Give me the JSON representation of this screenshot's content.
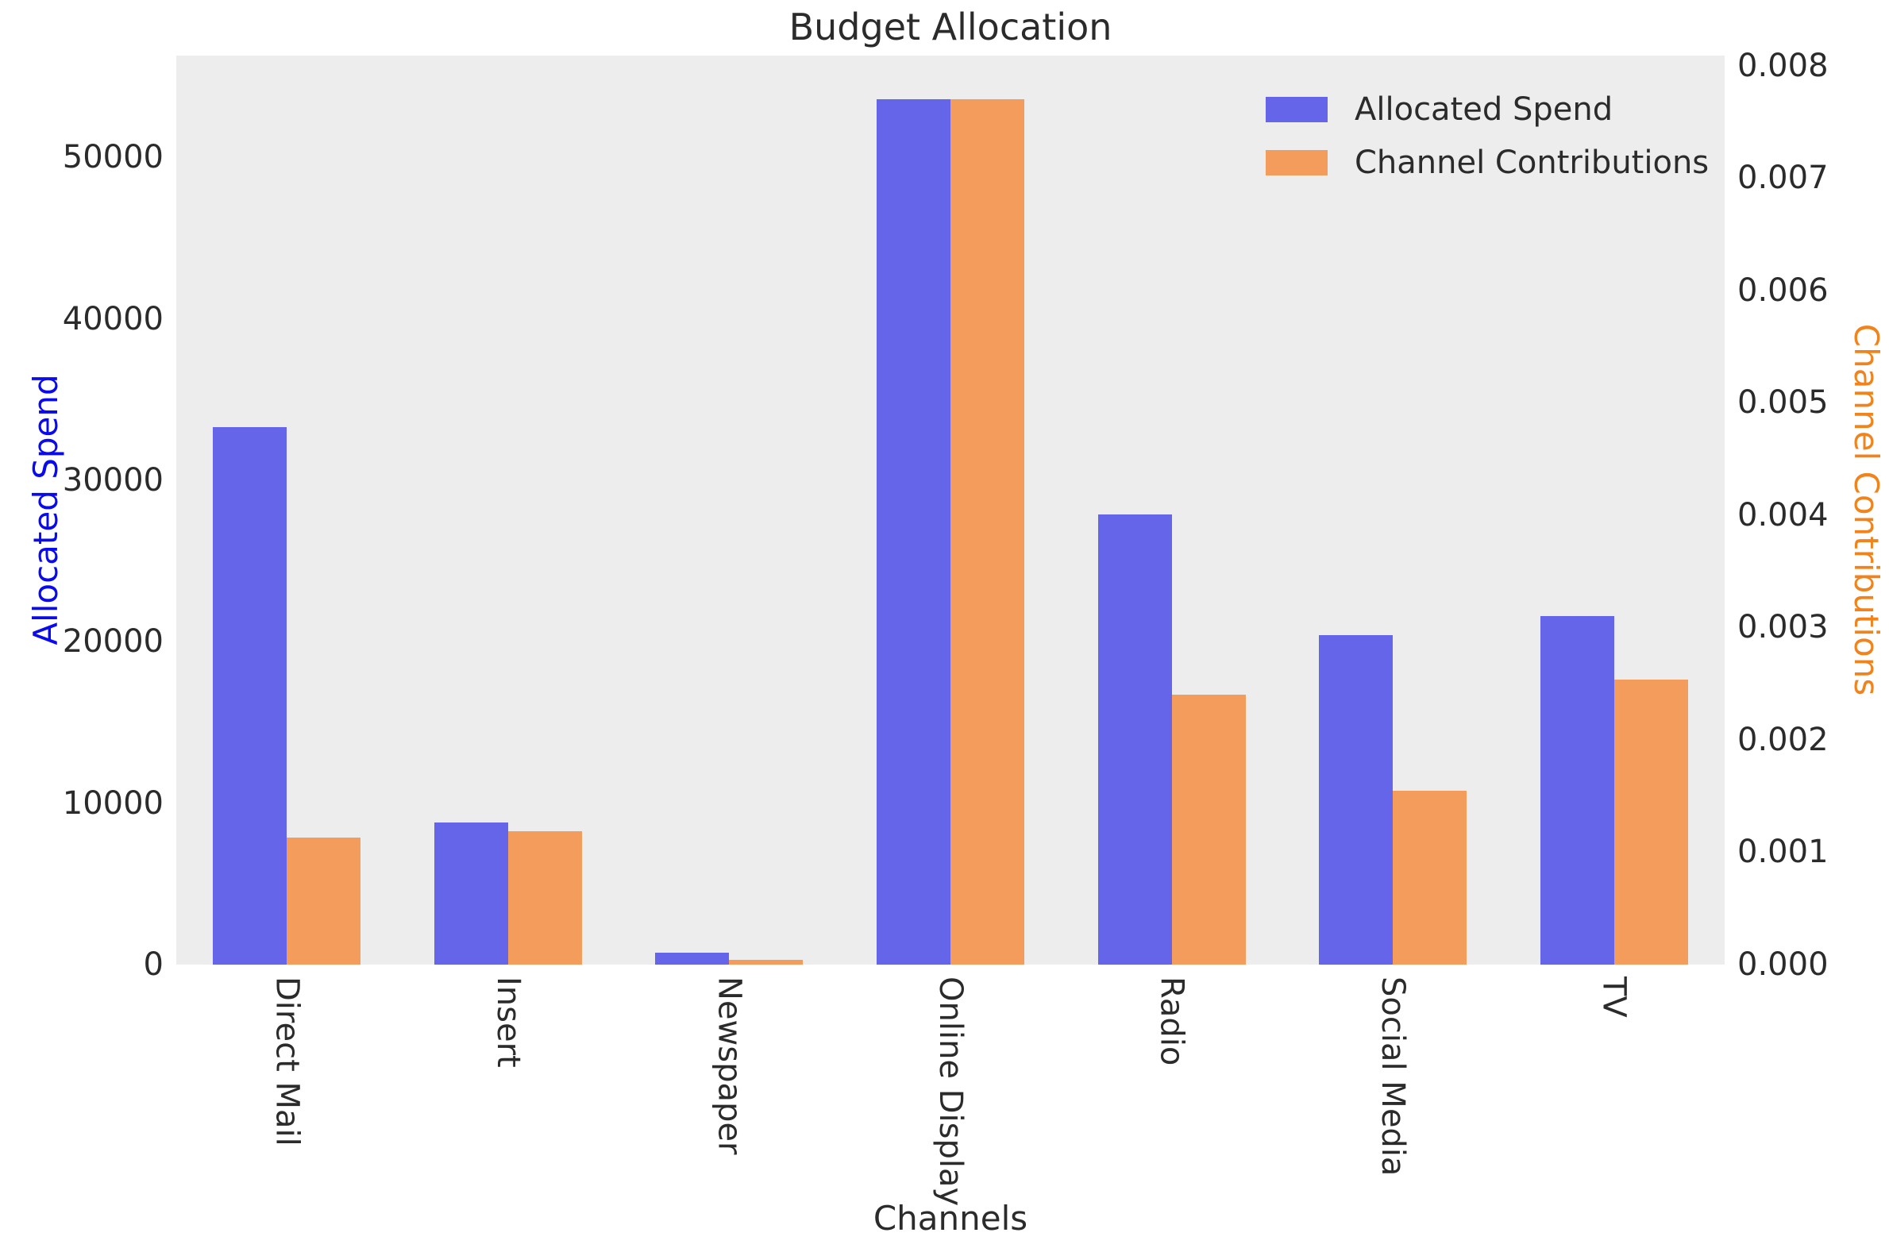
{
  "chart_data": {
    "type": "bar",
    "title": "Budget Allocation",
    "xlabel": "Channels",
    "categories": [
      "Direct Mail",
      "Insert",
      "Newspaper",
      "Online Display",
      "Radio",
      "Social Media",
      "TV"
    ],
    "series": [
      {
        "name": "Allocated Spend",
        "axis": "left",
        "color": "#6465E8",
        "values": [
          33300,
          8800,
          750,
          53600,
          27900,
          20400,
          21600
        ]
      },
      {
        "name": "Channel Contributions",
        "axis": "right",
        "color": "#F49C5C",
        "values": [
          0.00113,
          0.00119,
          4e-05,
          0.0077,
          0.0024,
          0.00155,
          0.00254
        ]
      }
    ],
    "left_axis": {
      "label": "Allocated Spend",
      "label_color": "#0A0AEF",
      "ticks": [
        0,
        10000,
        20000,
        30000,
        40000,
        50000
      ],
      "tick_labels": [
        "0",
        "10000",
        "20000",
        "30000",
        "40000",
        "50000"
      ],
      "max": 56300
    },
    "right_axis": {
      "label": "Channel Contributions",
      "label_color": "#F0831C",
      "ticks": [
        0,
        0.001,
        0.002,
        0.003,
        0.004,
        0.005,
        0.006,
        0.007,
        0.008
      ],
      "tick_labels": [
        "0.000",
        "0.001",
        "0.002",
        "0.003",
        "0.004",
        "0.005",
        "0.006",
        "0.007",
        "0.008"
      ],
      "max": 0.00809
    },
    "legend_position": "upper right",
    "grid": false,
    "plot_background": "#EDEDED"
  }
}
